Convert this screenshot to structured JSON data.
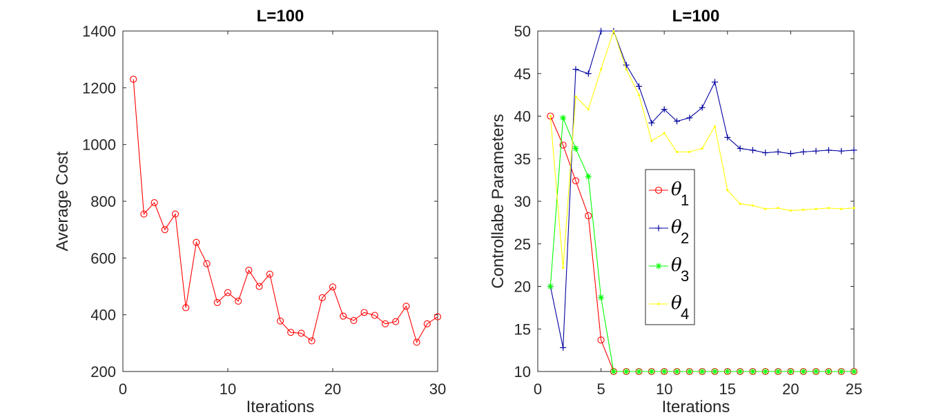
{
  "chart_data": [
    {
      "type": "line",
      "title": "L=100",
      "xlabel": "Iterations",
      "ylabel": "Average Cost",
      "xlim": [
        0,
        30
      ],
      "ylim": [
        200,
        1400
      ],
      "xticks": [
        0,
        10,
        20,
        30
      ],
      "yticks": [
        200,
        400,
        600,
        800,
        1000,
        1200,
        1400
      ],
      "series": [
        {
          "name": "Average Cost",
          "color": "#ff0000",
          "marker": "o",
          "x": [
            1,
            2,
            3,
            4,
            5,
            6,
            7,
            8,
            9,
            10,
            11,
            12,
            13,
            14,
            15,
            16,
            17,
            18,
            19,
            20,
            21,
            22,
            23,
            24,
            25,
            26,
            27,
            28,
            29,
            30
          ],
          "values": [
            1230,
            755,
            795,
            700,
            755,
            425,
            655,
            580,
            443,
            478,
            448,
            557,
            500,
            543,
            378,
            338,
            335,
            308,
            460,
            498,
            395,
            380,
            408,
            398,
            368,
            376,
            430,
            303,
            368,
            393
          ]
        }
      ]
    },
    {
      "type": "line",
      "title": "L=100",
      "xlabel": "Iterations",
      "ylabel": "Controllabe Parameters",
      "xlim": [
        0,
        25
      ],
      "ylim": [
        10,
        50
      ],
      "xticks": [
        0,
        5,
        10,
        15,
        20,
        25
      ],
      "yticks": [
        10,
        15,
        20,
        25,
        30,
        35,
        40,
        45,
        50
      ],
      "legend_position": "center",
      "series": [
        {
          "name": "θ",
          "subscript": "1",
          "color": "#ff0000",
          "marker": "o",
          "x": [
            1,
            2,
            3,
            4,
            5,
            6,
            7,
            8,
            9,
            10,
            11,
            12,
            13,
            14,
            15,
            16,
            17,
            18,
            19,
            20,
            21,
            22,
            23,
            24,
            25
          ],
          "values": [
            40,
            36.6,
            32.4,
            28.3,
            13.7,
            10,
            10,
            10,
            10,
            10,
            10,
            10,
            10,
            10,
            10,
            10,
            10,
            10,
            10,
            10,
            10,
            10,
            10,
            10,
            10
          ]
        },
        {
          "name": "θ",
          "subscript": "2",
          "color": "#0000a0",
          "marker": "+",
          "x": [
            1,
            2,
            3,
            4,
            5,
            6,
            7,
            8,
            9,
            10,
            11,
            12,
            13,
            14,
            15,
            16,
            17,
            18,
            19,
            20,
            21,
            22,
            23,
            24,
            25
          ],
          "values": [
            20,
            12.8,
            45.5,
            45,
            50,
            50,
            46,
            43.5,
            39.2,
            40.8,
            39.4,
            39.8,
            41,
            44,
            37.5,
            36.2,
            36,
            35.7,
            35.8,
            35.6,
            35.8,
            35.9,
            36,
            35.9,
            36
          ]
        },
        {
          "name": "θ",
          "subscript": "3",
          "color": "#00ff00",
          "marker": "*",
          "x": [
            1,
            2,
            3,
            4,
            5,
            6,
            7,
            8,
            9,
            10,
            11,
            12,
            13,
            14,
            15,
            16,
            17,
            18,
            19,
            20,
            21,
            22,
            23,
            24,
            25
          ],
          "values": [
            20,
            39.8,
            36.2,
            32.9,
            18.7,
            10,
            10,
            10,
            10,
            10,
            10,
            10,
            10,
            10,
            10,
            10,
            10,
            10,
            10,
            10,
            10,
            10,
            10,
            10,
            10
          ]
        },
        {
          "name": "θ",
          "subscript": "4",
          "color": "#ffff00",
          "marker": ".",
          "x": [
            1,
            2,
            3,
            4,
            5,
            6,
            7,
            8,
            9,
            10,
            11,
            12,
            13,
            14,
            15,
            16,
            17,
            18,
            19,
            20,
            21,
            22,
            23,
            24,
            25
          ],
          "values": [
            40,
            22.2,
            42.3,
            40.8,
            45.5,
            50,
            45.5,
            42.5,
            37.1,
            38,
            35.8,
            35.8,
            36.2,
            38.8,
            31.3,
            29.7,
            29.5,
            29.1,
            29.2,
            28.9,
            29,
            29.1,
            29.2,
            29.1,
            29.2
          ]
        }
      ]
    }
  ]
}
